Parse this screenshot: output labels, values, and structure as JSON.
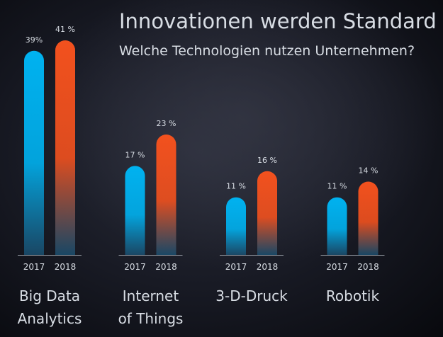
{
  "chart_data": {
    "type": "bar",
    "title": "Innovationen werden Standard",
    "subtitle": "Welche Technologien nutzen Unternehmen?",
    "categories": [
      [
        "Big Data",
        "Analytics"
      ],
      [
        "Internet",
        "of Things"
      ],
      [
        "3-D-Druck"
      ],
      [
        "Robotik"
      ]
    ],
    "series": [
      {
        "name": "2017",
        "color": "#00b2f0",
        "values": [
          39,
          17,
          11,
          11
        ],
        "value_labels": [
          "39%",
          "17 %",
          "11 %",
          "11 %"
        ]
      },
      {
        "name": "2018",
        "color": "#f2511e",
        "values": [
          41,
          23,
          16,
          14
        ],
        "value_labels": [
          "41 %",
          "23 %",
          "16 %",
          "14 %"
        ]
      }
    ]
  }
}
